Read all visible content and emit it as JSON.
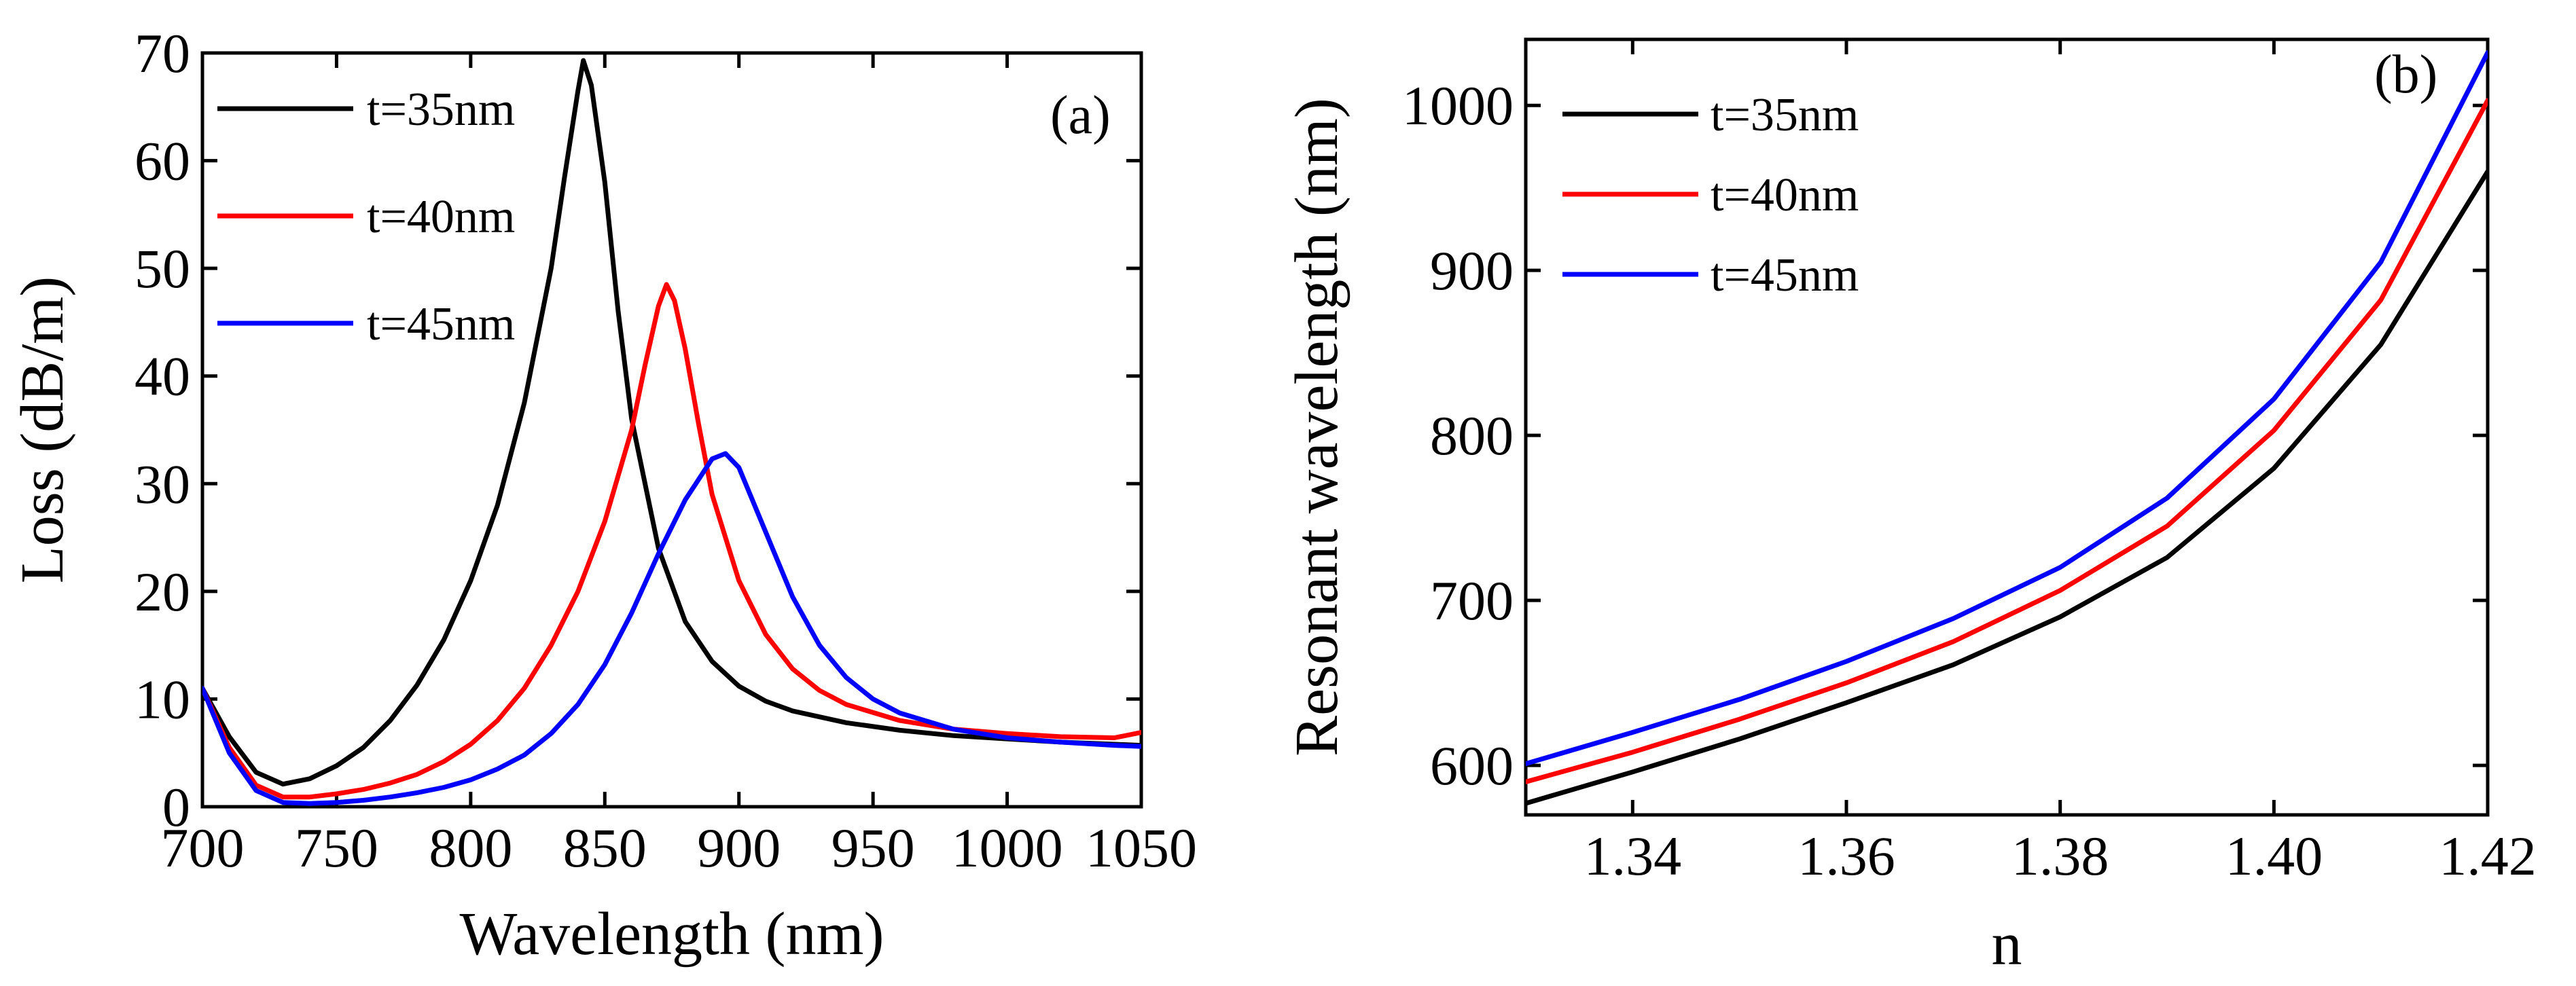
{
  "chart_data": [
    {
      "type": "line",
      "panel_label": "(a)",
      "xlabel": "Wavelength (nm)",
      "ylabel": "Loss (dB/m)",
      "xlim": [
        700,
        1050
      ],
      "ylim": [
        0,
        70
      ],
      "xticks": [
        700,
        750,
        800,
        850,
        900,
        950,
        1000,
        1050
      ],
      "yticks": [
        0,
        10,
        20,
        30,
        40,
        50,
        60,
        70
      ],
      "legend_position": "top-left",
      "grid": false,
      "series": [
        {
          "name": "t=35nm",
          "color": "#000000",
          "x": [
            700,
            710,
            720,
            730,
            740,
            750,
            760,
            770,
            780,
            790,
            800,
            810,
            820,
            830,
            835,
            840,
            842,
            845,
            850,
            855,
            860,
            870,
            880,
            890,
            900,
            910,
            920,
            940,
            960,
            980,
            1000,
            1020,
            1040,
            1050
          ],
          "y": [
            11,
            6.5,
            3.2,
            2.1,
            2.6,
            3.8,
            5.5,
            8.0,
            11.3,
            15.5,
            21.0,
            28.0,
            37.5,
            50.0,
            58.5,
            66.5,
            69.3,
            67.0,
            58.0,
            46.0,
            36.0,
            24.0,
            17.2,
            13.5,
            11.2,
            9.8,
            8.9,
            7.8,
            7.1,
            6.6,
            6.3,
            6.0,
            5.8,
            5.7
          ]
        },
        {
          "name": "t=40nm",
          "color": "#ff0000",
          "x": [
            700,
            710,
            720,
            730,
            740,
            750,
            760,
            770,
            780,
            790,
            800,
            810,
            820,
            830,
            840,
            850,
            860,
            865,
            870,
            873,
            876,
            880,
            885,
            890,
            900,
            910,
            920,
            930,
            940,
            960,
            980,
            1000,
            1020,
            1040,
            1050
          ],
          "y": [
            11,
            5.5,
            2.0,
            0.9,
            0.9,
            1.2,
            1.6,
            2.2,
            3.0,
            4.2,
            5.8,
            8.0,
            11.0,
            15.0,
            20.0,
            26.5,
            35.0,
            41.0,
            46.5,
            48.5,
            47.0,
            42.5,
            35.5,
            29.0,
            21.0,
            16.0,
            12.8,
            10.8,
            9.5,
            8.0,
            7.2,
            6.8,
            6.5,
            6.4,
            6.9
          ]
        },
        {
          "name": "t=45nm",
          "color": "#0000ff",
          "x": [
            700,
            710,
            720,
            730,
            740,
            750,
            760,
            770,
            780,
            790,
            800,
            810,
            820,
            830,
            840,
            850,
            860,
            870,
            880,
            890,
            895,
            900,
            910,
            920,
            930,
            940,
            950,
            960,
            980,
            1000,
            1020,
            1040,
            1050
          ],
          "y": [
            11,
            5.0,
            1.5,
            0.4,
            0.3,
            0.4,
            0.6,
            0.9,
            1.3,
            1.8,
            2.5,
            3.5,
            4.8,
            6.8,
            9.5,
            13.2,
            18.0,
            23.5,
            28.5,
            32.3,
            32.8,
            31.5,
            25.5,
            19.5,
            15.0,
            12.0,
            10.0,
            8.7,
            7.2,
            6.4,
            6.0,
            5.7,
            5.6
          ]
        }
      ]
    },
    {
      "type": "line",
      "panel_label": "(b)",
      "xlabel": "n",
      "ylabel": "Resonant wavelength (nm)",
      "xlim": [
        1.33,
        1.42
      ],
      "ylim": [
        570,
        1040
      ],
      "xticks": [
        1.34,
        1.36,
        1.38,
        1.4,
        1.42
      ],
      "xtick_labels": [
        "1.34",
        "1.36",
        "1.38",
        "1.40",
        "1.42"
      ],
      "yticks": [
        600,
        700,
        800,
        900,
        1000
      ],
      "legend_position": "top-left",
      "grid": false,
      "series": [
        {
          "name": "t=35nm",
          "color": "#000000",
          "x": [
            1.33,
            1.34,
            1.35,
            1.36,
            1.37,
            1.38,
            1.39,
            1.4,
            1.41,
            1.42
          ],
          "y": [
            577,
            596,
            616,
            638,
            661,
            690,
            726,
            780,
            855,
            960
          ]
        },
        {
          "name": "t=40nm",
          "color": "#ff0000",
          "x": [
            1.33,
            1.34,
            1.35,
            1.36,
            1.37,
            1.38,
            1.39,
            1.4,
            1.41,
            1.42
          ],
          "y": [
            590,
            608,
            628,
            650,
            675,
            706,
            745,
            803,
            882,
            1003
          ]
        },
        {
          "name": "t=45nm",
          "color": "#0000ff",
          "x": [
            1.33,
            1.34,
            1.35,
            1.36,
            1.37,
            1.38,
            1.39,
            1.4,
            1.41,
            1.42
          ],
          "y": [
            601,
            620,
            640,
            663,
            689,
            720,
            762,
            822,
            905,
            1032
          ]
        }
      ]
    }
  ]
}
